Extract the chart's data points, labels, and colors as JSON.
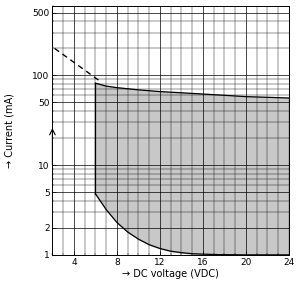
{
  "title": "",
  "xlabel": "→ DC voltage (VDC)",
  "ylabel": "Current (mA)",
  "ylabel_arrow": "→ ",
  "xlim": [
    2,
    24
  ],
  "ylim": [
    1,
    600
  ],
  "xticks": [
    4,
    8,
    12,
    16,
    20,
    24
  ],
  "yticks": [
    1,
    2,
    5,
    10,
    50,
    100,
    500
  ],
  "ytick_labels": [
    "1",
    "2",
    "5",
    "10",
    "50",
    "100",
    "500"
  ],
  "background_color": "#ffffff",
  "grid_color": "#000000",
  "shade_color": "#c8c8c8",
  "dashed_line": {
    "x": [
      2.2,
      6.5
    ],
    "y": [
      200,
      85
    ]
  },
  "upper_curve": {
    "x": [
      6.0,
      7,
      8,
      10,
      12,
      14,
      16,
      18,
      20,
      22,
      24
    ],
    "y": [
      82,
      76,
      73,
      69,
      66,
      64,
      62,
      60,
      58,
      57,
      56
    ]
  },
  "lower_curve": {
    "x": [
      6.0,
      7,
      8,
      9,
      10,
      11,
      12,
      13,
      14,
      15,
      16,
      17,
      18,
      19,
      20,
      21,
      22,
      24
    ],
    "y": [
      4.8,
      3.2,
      2.3,
      1.8,
      1.5,
      1.3,
      1.18,
      1.1,
      1.06,
      1.03,
      1.02,
      1.01,
      1.005,
      1.003,
      1.001,
      1.0,
      1.0,
      1.0
    ]
  },
  "left_boundary_x": 6.0,
  "right_boundary_x": 24.0,
  "bottom_boundary_y": 1.0
}
